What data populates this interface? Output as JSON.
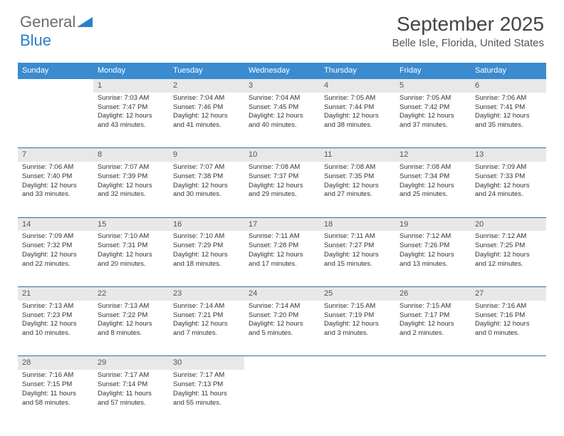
{
  "logo": {
    "text1": "General",
    "text2": "Blue"
  },
  "title": "September 2025",
  "location": "Belle Isle, Florida, United States",
  "weekday_headers": [
    "Sunday",
    "Monday",
    "Tuesday",
    "Wednesday",
    "Thursday",
    "Friday",
    "Saturday"
  ],
  "colors": {
    "header_bg": "#3b8bd0",
    "header_text": "#ffffff",
    "daynum_bg": "#e8e8e8",
    "row_divider": "#2d6fa8",
    "logo_gray": "#6b6b6b",
    "logo_blue": "#2d7fc8"
  },
  "weeks": [
    {
      "nums": [
        "",
        "1",
        "2",
        "3",
        "4",
        "5",
        "6"
      ],
      "cells": [
        null,
        {
          "sunrise": "7:03 AM",
          "sunset": "7:47 PM",
          "daylight": "12 hours and 43 minutes."
        },
        {
          "sunrise": "7:04 AM",
          "sunset": "7:46 PM",
          "daylight": "12 hours and 41 minutes."
        },
        {
          "sunrise": "7:04 AM",
          "sunset": "7:45 PM",
          "daylight": "12 hours and 40 minutes."
        },
        {
          "sunrise": "7:05 AM",
          "sunset": "7:44 PM",
          "daylight": "12 hours and 38 minutes."
        },
        {
          "sunrise": "7:05 AM",
          "sunset": "7:42 PM",
          "daylight": "12 hours and 37 minutes."
        },
        {
          "sunrise": "7:06 AM",
          "sunset": "7:41 PM",
          "daylight": "12 hours and 35 minutes."
        }
      ]
    },
    {
      "nums": [
        "7",
        "8",
        "9",
        "10",
        "11",
        "12",
        "13"
      ],
      "cells": [
        {
          "sunrise": "7:06 AM",
          "sunset": "7:40 PM",
          "daylight": "12 hours and 33 minutes."
        },
        {
          "sunrise": "7:07 AM",
          "sunset": "7:39 PM",
          "daylight": "12 hours and 32 minutes."
        },
        {
          "sunrise": "7:07 AM",
          "sunset": "7:38 PM",
          "daylight": "12 hours and 30 minutes."
        },
        {
          "sunrise": "7:08 AM",
          "sunset": "7:37 PM",
          "daylight": "12 hours and 29 minutes."
        },
        {
          "sunrise": "7:08 AM",
          "sunset": "7:35 PM",
          "daylight": "12 hours and 27 minutes."
        },
        {
          "sunrise": "7:08 AM",
          "sunset": "7:34 PM",
          "daylight": "12 hours and 25 minutes."
        },
        {
          "sunrise": "7:09 AM",
          "sunset": "7:33 PM",
          "daylight": "12 hours and 24 minutes."
        }
      ]
    },
    {
      "nums": [
        "14",
        "15",
        "16",
        "17",
        "18",
        "19",
        "20"
      ],
      "cells": [
        {
          "sunrise": "7:09 AM",
          "sunset": "7:32 PM",
          "daylight": "12 hours and 22 minutes."
        },
        {
          "sunrise": "7:10 AM",
          "sunset": "7:31 PM",
          "daylight": "12 hours and 20 minutes."
        },
        {
          "sunrise": "7:10 AM",
          "sunset": "7:29 PM",
          "daylight": "12 hours and 18 minutes."
        },
        {
          "sunrise": "7:11 AM",
          "sunset": "7:28 PM",
          "daylight": "12 hours and 17 minutes."
        },
        {
          "sunrise": "7:11 AM",
          "sunset": "7:27 PM",
          "daylight": "12 hours and 15 minutes."
        },
        {
          "sunrise": "7:12 AM",
          "sunset": "7:26 PM",
          "daylight": "12 hours and 13 minutes."
        },
        {
          "sunrise": "7:12 AM",
          "sunset": "7:25 PM",
          "daylight": "12 hours and 12 minutes."
        }
      ]
    },
    {
      "nums": [
        "21",
        "22",
        "23",
        "24",
        "25",
        "26",
        "27"
      ],
      "cells": [
        {
          "sunrise": "7:13 AM",
          "sunset": "7:23 PM",
          "daylight": "12 hours and 10 minutes."
        },
        {
          "sunrise": "7:13 AM",
          "sunset": "7:22 PM",
          "daylight": "12 hours and 8 minutes."
        },
        {
          "sunrise": "7:14 AM",
          "sunset": "7:21 PM",
          "daylight": "12 hours and 7 minutes."
        },
        {
          "sunrise": "7:14 AM",
          "sunset": "7:20 PM",
          "daylight": "12 hours and 5 minutes."
        },
        {
          "sunrise": "7:15 AM",
          "sunset": "7:19 PM",
          "daylight": "12 hours and 3 minutes."
        },
        {
          "sunrise": "7:15 AM",
          "sunset": "7:17 PM",
          "daylight": "12 hours and 2 minutes."
        },
        {
          "sunrise": "7:16 AM",
          "sunset": "7:16 PM",
          "daylight": "12 hours and 0 minutes."
        }
      ]
    },
    {
      "nums": [
        "28",
        "29",
        "30",
        "",
        "",
        "",
        ""
      ],
      "cells": [
        {
          "sunrise": "7:16 AM",
          "sunset": "7:15 PM",
          "daylight": "11 hours and 58 minutes."
        },
        {
          "sunrise": "7:17 AM",
          "sunset": "7:14 PM",
          "daylight": "11 hours and 57 minutes."
        },
        {
          "sunrise": "7:17 AM",
          "sunset": "7:13 PM",
          "daylight": "11 hours and 55 minutes."
        },
        null,
        null,
        null,
        null
      ]
    }
  ],
  "labels": {
    "sunrise": "Sunrise:",
    "sunset": "Sunset:",
    "daylight": "Daylight:"
  }
}
